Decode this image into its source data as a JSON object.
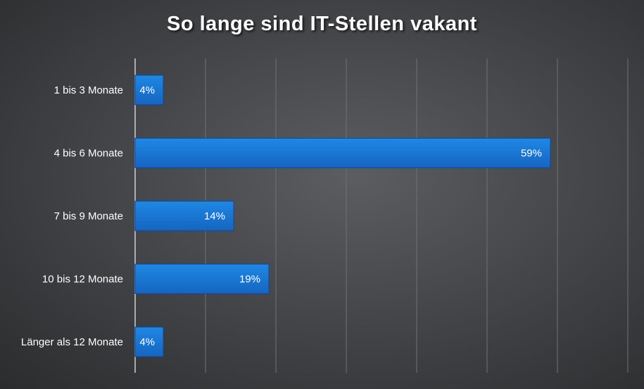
{
  "chart_data": {
    "type": "bar",
    "orientation": "horizontal",
    "title": "So lange sind IT-Stellen vakant",
    "categories": [
      "1 bis 3 Monate",
      "4 bis 6 Monate",
      "7 bis 9 Monate",
      "10 bis 12 Monate",
      "Länger als 12 Monate"
    ],
    "values": [
      4,
      59,
      14,
      19,
      4
    ],
    "data_labels": [
      "4%",
      "59%",
      "14%",
      "19%",
      "4%"
    ],
    "xlim": [
      0,
      70
    ],
    "grid": true,
    "bar_color": "#1565c0",
    "bar_color_light": "#1e88e5"
  }
}
